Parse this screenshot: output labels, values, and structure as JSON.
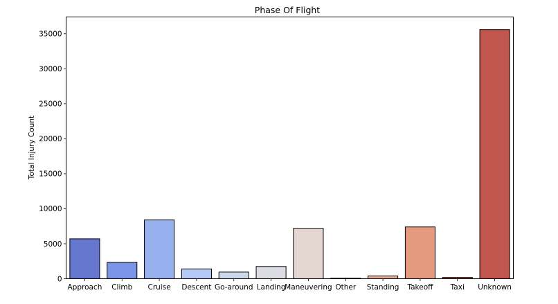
{
  "chart_data": {
    "type": "bar",
    "title": "Phase Of Flight",
    "xlabel": "",
    "ylabel": "Total Injury Count",
    "categories": [
      "Approach",
      "Climb",
      "Cruise",
      "Descent",
      "Go-around",
      "Landing",
      "Maneuvering",
      "Other",
      "Standing",
      "Takeoff",
      "Taxi",
      "Unknown"
    ],
    "values": [
      5700,
      2350,
      8400,
      1400,
      950,
      1750,
      7200,
      80,
      400,
      7400,
      180,
      35600
    ],
    "colors": [
      "#6576cf",
      "#7b95e6",
      "#97b1ef",
      "#b4c9f3",
      "#cdd8ef",
      "#dcdde4",
      "#e4d7d2",
      "#f0c1ab",
      "#eeab8e",
      "#e49a7f",
      "#d2725f",
      "#c0564e"
    ],
    "ylim": [
      0,
      37400
    ],
    "yticks": [
      0,
      5000,
      10000,
      15000,
      20000,
      25000,
      30000,
      35000
    ],
    "grid": false,
    "legend": "none"
  }
}
